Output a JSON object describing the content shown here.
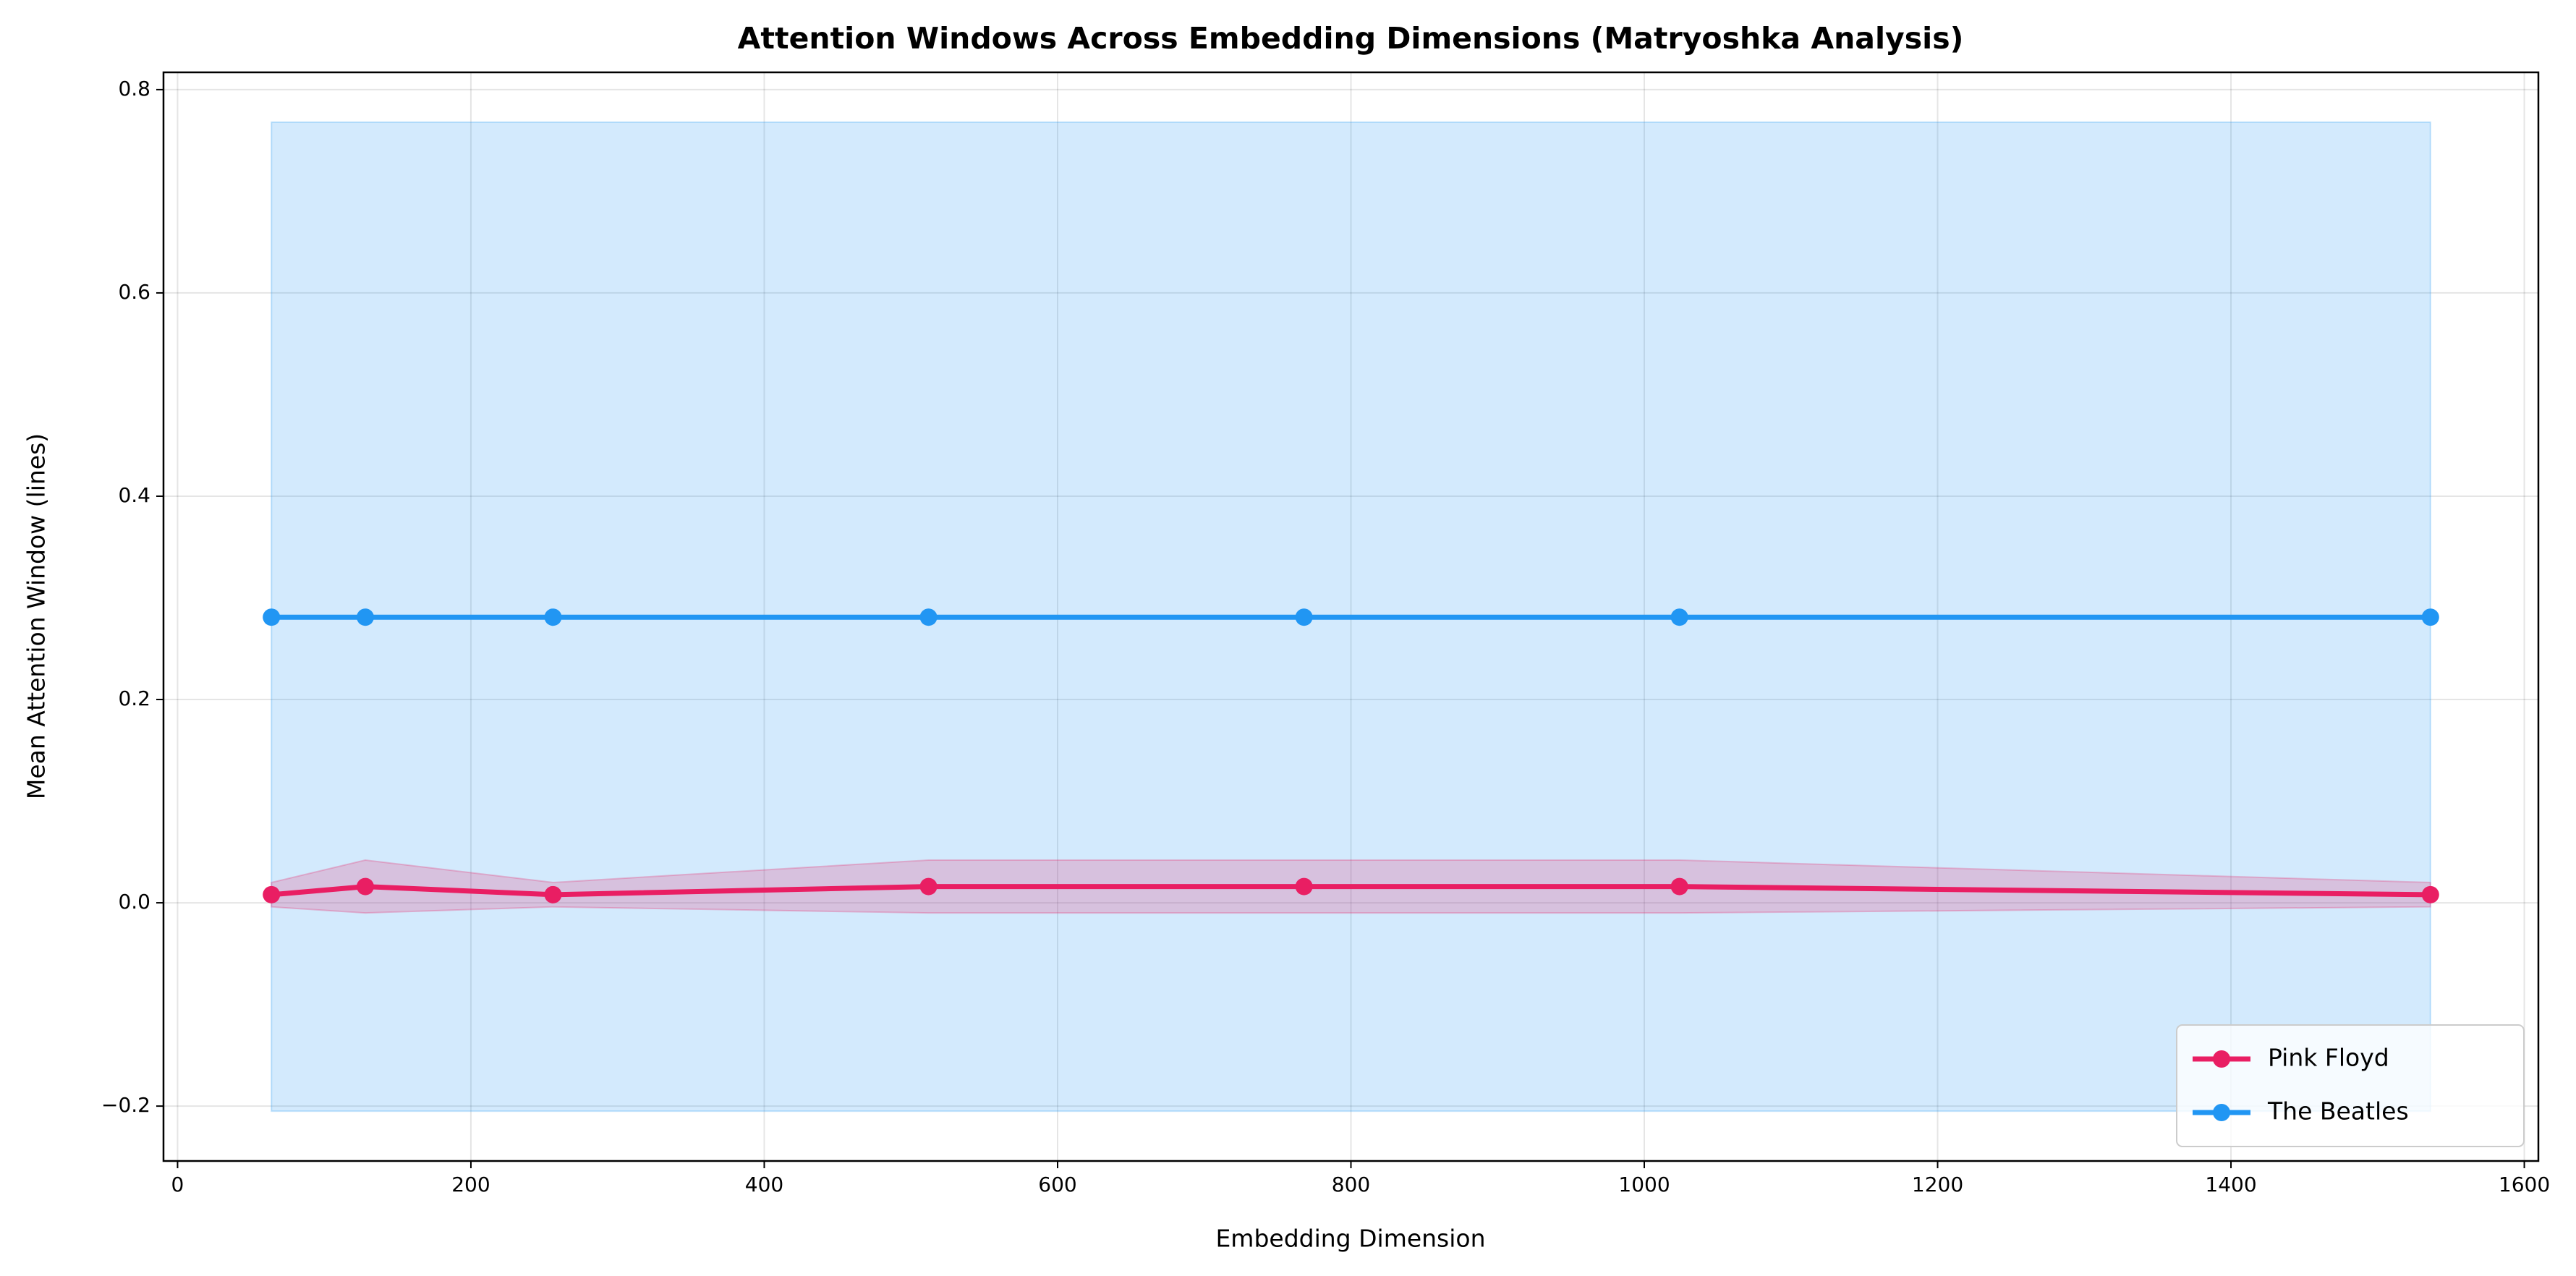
{
  "chart_data": {
    "type": "line",
    "title": "Attention Windows Across Embedding Dimensions (Matryoshka Analysis)",
    "x_label": "Embedding Dimension",
    "y_label": "Mean Attention Window (lines)",
    "x": [
      64,
      128,
      256,
      512,
      768,
      1024,
      1536
    ],
    "series": [
      {
        "name": "Pink Floyd",
        "color": "#e91e63",
        "values": [
          0.008,
          0.016,
          0.008,
          0.016,
          0.016,
          0.016,
          0.008
        ],
        "lower": [
          -0.004,
          -0.01,
          -0.004,
          -0.01,
          -0.01,
          -0.01,
          -0.004
        ],
        "upper": [
          0.02,
          0.042,
          0.02,
          0.042,
          0.042,
          0.042,
          0.02
        ]
      },
      {
        "name": "The Beatles",
        "color": "#2196f3",
        "values": [
          0.281,
          0.281,
          0.281,
          0.281,
          0.281,
          0.281,
          0.281
        ],
        "lower": [
          -0.205,
          -0.205,
          -0.205,
          -0.205,
          -0.205,
          -0.205,
          -0.205
        ],
        "upper": [
          0.768,
          0.768,
          0.768,
          0.768,
          0.768,
          0.768,
          0.768
        ]
      }
    ],
    "xlim": [
      -9.6,
      1609.6
    ],
    "ylim": [
      -0.254,
      0.817
    ],
    "xticks": [
      0,
      200,
      400,
      600,
      800,
      1000,
      1200,
      1400,
      1600
    ],
    "yticks": [
      -0.2,
      0.0,
      0.2,
      0.4,
      0.6,
      0.8
    ],
    "grid": true,
    "legend": "lower right"
  }
}
